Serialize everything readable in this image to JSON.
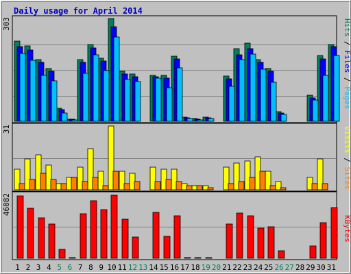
{
  "chart_data": [
    {
      "type": "bar",
      "title": "Daily usage for April 2014",
      "panel": "hits-files-pages",
      "ymax_label": "303",
      "categories": [
        "1",
        "2",
        "3",
        "4",
        "5",
        "6",
        "7",
        "8",
        "9",
        "10",
        "11",
        "12",
        "13",
        "14",
        "15",
        "16",
        "17",
        "18",
        "19",
        "20",
        "21",
        "22",
        "23",
        "24",
        "25",
        "26",
        "27",
        "28",
        "29",
        "30",
        "31"
      ],
      "weekend_days": [
        "5",
        "6",
        "12",
        "13",
        "19",
        "20",
        "26",
        "27"
      ],
      "ylim": [
        0,
        303
      ],
      "series": [
        {
          "name": "Hits",
          "color": "#00805c",
          "values": [
            236,
            222,
            182,
            155,
            38,
            7,
            182,
            226,
            185,
            303,
            148,
            139,
            0,
            135,
            135,
            191,
            12,
            8,
            12,
            0,
            134,
            215,
            230,
            182,
            155,
            28,
            0,
            0,
            76,
            193,
            227
          ]
        },
        {
          "name": "Files",
          "color": "#0000ff",
          "values": [
            220,
            211,
            173,
            148,
            34,
            6,
            174,
            216,
            177,
            279,
            140,
            131,
            0,
            132,
            128,
            183,
            10,
            6,
            10,
            0,
            125,
            195,
            214,
            174,
            148,
            25,
            0,
            0,
            68,
            183,
            220
          ]
        },
        {
          "name": "Pages",
          "color": "#00c0ff",
          "values": [
            199,
            180,
            135,
            119,
            25,
            4,
            142,
            196,
            149,
            249,
            123,
            118,
            0,
            128,
            99,
            158,
            9,
            5,
            9,
            0,
            104,
            182,
            197,
            154,
            115,
            20,
            0,
            0,
            62,
            136,
            193
          ]
        }
      ],
      "ylabel_parts": [
        {
          "text": "Pages",
          "color": "#00c0ff"
        },
        {
          "text": " / ",
          "color": "#000000"
        },
        {
          "text": "Files",
          "color": "#0000ff"
        },
        {
          "text": " / ",
          "color": "#000000"
        },
        {
          "text": "Hits",
          "color": "#00805c"
        }
      ]
    },
    {
      "type": "bar",
      "panel": "visits-sites",
      "ymax_label": "31",
      "ylim": [
        0,
        31
      ],
      "series": [
        {
          "name": "Visits",
          "color": "#ffff00",
          "values": [
            10,
            15,
            17,
            12,
            3,
            6,
            11,
            20,
            9,
            31,
            9,
            8,
            0,
            11,
            10,
            10,
            3,
            2,
            2,
            0,
            11,
            13,
            14,
            16,
            9,
            4,
            0,
            0,
            6,
            15,
            0
          ]
        },
        {
          "name": "Sites",
          "color": "#ff8000",
          "values": [
            3,
            5,
            8,
            5,
            3,
            6,
            4,
            6,
            2,
            9,
            3,
            4,
            0,
            4,
            5,
            4,
            2,
            2,
            1,
            0,
            3,
            4,
            6,
            9,
            2,
            1,
            0,
            0,
            3,
            3,
            0
          ]
        }
      ],
      "ylabel_parts": [
        {
          "text": "Sites",
          "color": "#ff8000"
        },
        {
          "text": " / ",
          "color": "#000000"
        },
        {
          "text": "Visits",
          "color": "#ffff00"
        }
      ]
    },
    {
      "type": "bar",
      "panel": "kbytes",
      "ymax_label": "46082",
      "ylim": [
        0,
        46082
      ],
      "series": [
        {
          "name": "KBytes",
          "color": "#ff0000",
          "values": [
            45000,
            36000,
            29000,
            25000,
            6500,
            500,
            32000,
            41500,
            35000,
            45500,
            28000,
            15500,
            0,
            33000,
            16000,
            30500,
            400,
            300,
            400,
            0,
            25000,
            32500,
            30500,
            22000,
            23000,
            5500,
            0,
            0,
            9000,
            26000,
            36500
          ]
        }
      ],
      "ylabel_parts": [
        {
          "text": "KBytes",
          "color": "#ff0000"
        }
      ]
    }
  ]
}
